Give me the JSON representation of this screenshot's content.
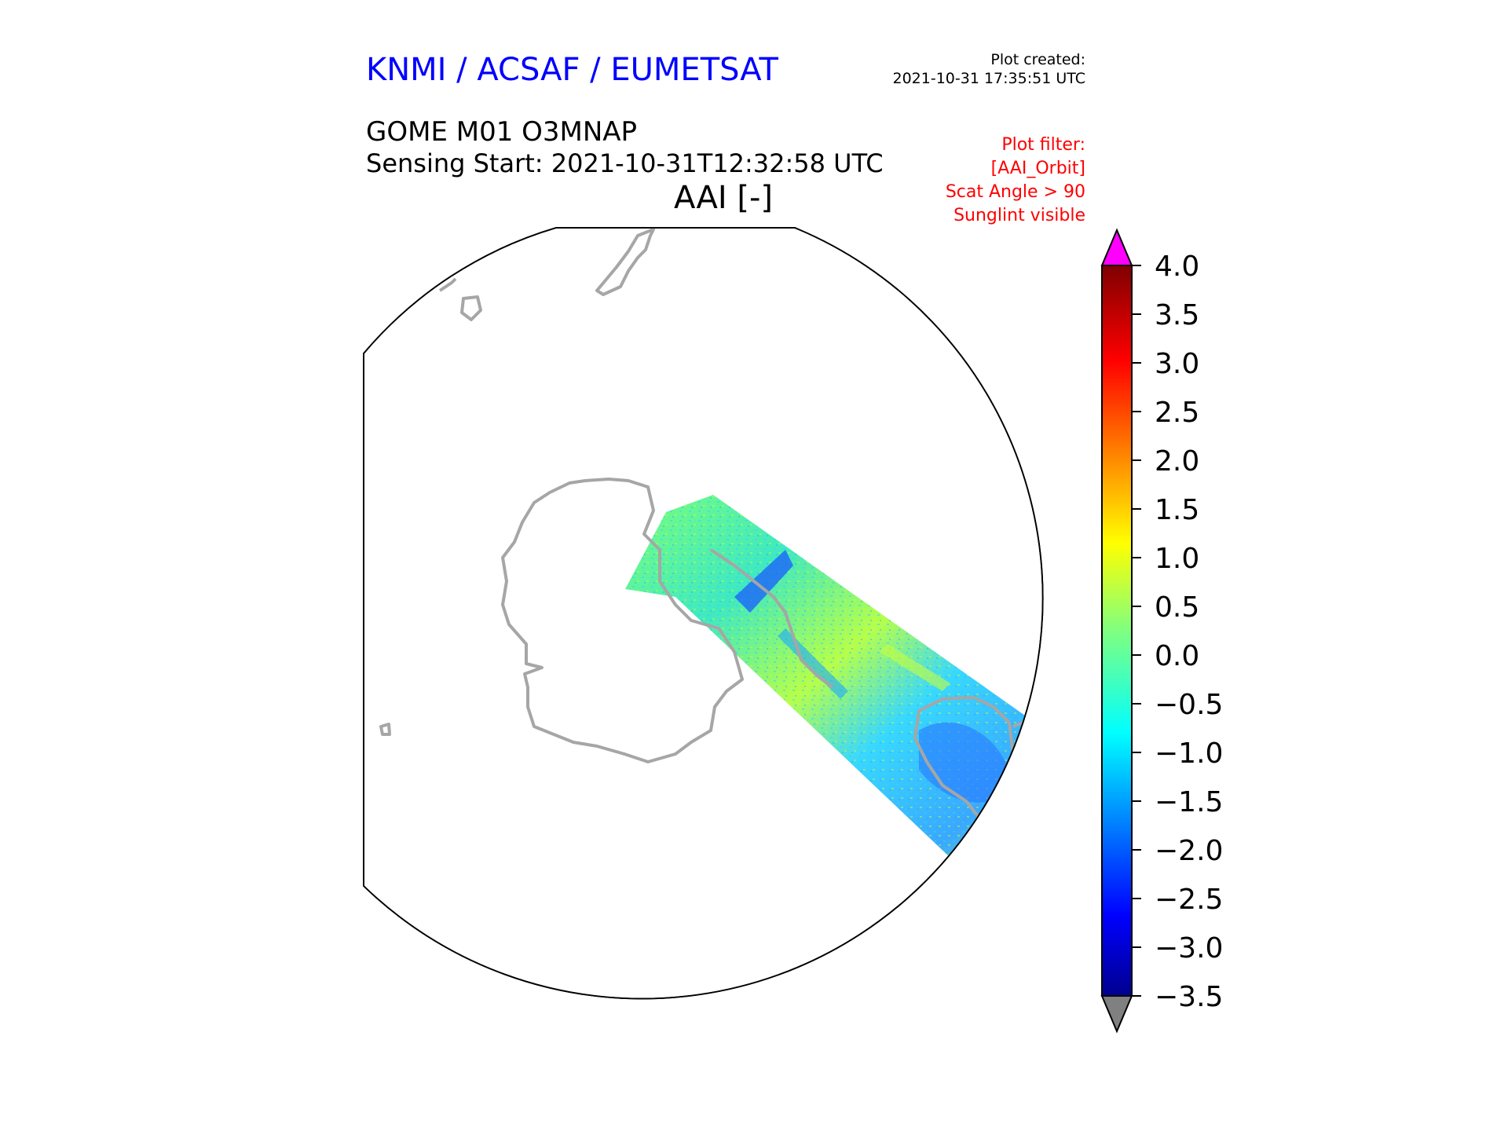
{
  "header": {
    "organization": "KNMI / ACSAF / EUMETSAT",
    "plot_created_label": "Plot created:",
    "plot_created_time": "2021-10-31 17:35:51 UTC",
    "product": "GOME M01 O3MNAP",
    "sensing_start": "Sensing Start: 2021-10-31T12:32:58 UTC",
    "variable": "AAI [-]",
    "filters": [
      "Plot filter:",
      "[AAI_Orbit]",
      "Scat Angle > 90",
      "Sunglint visible"
    ]
  },
  "colors": {
    "organization": "#0000ff",
    "filter_text": "#ff0000",
    "coastline": "#a6a6a6",
    "over_color": "#ff00ff",
    "under_color": "#808080"
  },
  "colorbar": {
    "min": -3.5,
    "max": 4.0,
    "ticks": [
      "4.0",
      "3.5",
      "3.0",
      "2.5",
      "2.0",
      "1.5",
      "1.0",
      "0.5",
      "0.0",
      "−0.5",
      "−1.0",
      "−1.5",
      "−2.0",
      "−2.5",
      "−3.0",
      "−3.5"
    ],
    "tick_values": [
      4.0,
      3.5,
      3.0,
      2.5,
      2.0,
      1.5,
      1.0,
      0.5,
      0.0,
      -0.5,
      -1.0,
      -1.5,
      -2.0,
      -2.5,
      -3.0,
      -3.5
    ],
    "colormap": "jet",
    "extend": "both"
  },
  "map": {
    "projection": "south-polar-stereographic",
    "swath_typical_aai": 0.0
  }
}
